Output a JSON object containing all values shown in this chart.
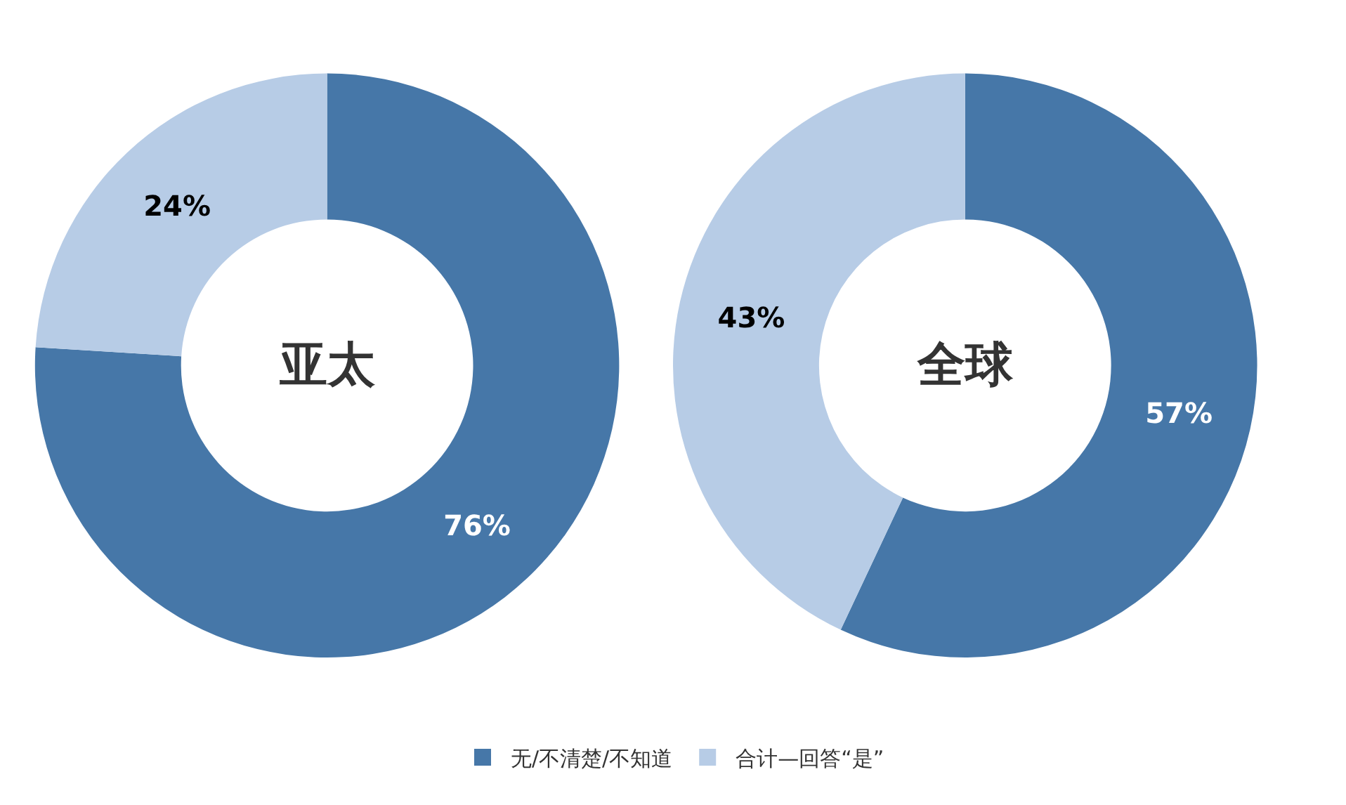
{
  "chart_data": [
    {
      "type": "donut",
      "title": "亚太",
      "categories": [
        "无/不清楚/不知道",
        "合计—回答“是”"
      ],
      "values": [
        76,
        24
      ],
      "colors": [
        "#4677a8",
        "#b7cce6"
      ],
      "value_labels": [
        "76%",
        "24%"
      ],
      "legend": "bottom"
    },
    {
      "type": "donut",
      "title": "全球",
      "categories": [
        null,
        null
      ],
      "values": [
        57,
        43
      ],
      "colors": [
        "#4677a8",
        "#b7cce6"
      ],
      "value_labels": [
        "57%",
        "43%"
      ]
    }
  ]
}
